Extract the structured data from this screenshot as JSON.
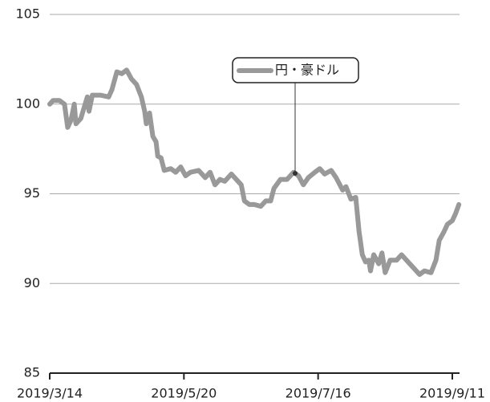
{
  "chart_data": {
    "type": "line",
    "x": [
      0,
      1,
      3,
      4.5,
      5.5,
      6.5,
      7.5,
      8,
      9.5,
      11.5,
      12,
      13,
      15.5,
      18,
      19,
      20.5,
      22,
      23.5,
      25,
      26.5,
      28,
      29,
      29.5,
      30.5,
      31.5,
      32.5,
      33,
      34,
      35,
      37,
      38.5,
      40,
      41.5,
      43,
      45.5,
      47.5,
      49,
      50.5,
      52,
      53.5,
      55.5,
      58.5,
      59.5,
      61,
      62.5,
      64.5,
      66,
      67.5,
      68.5,
      70.5,
      72.5,
      74.5,
      76,
      77.5,
      79,
      81,
      82.5,
      84,
      86,
      87.5,
      89.5,
      90.5,
      92,
      93.5,
      94.5,
      95.5,
      96.5,
      97.5,
      98,
      99,
      100.5,
      101.5,
      102.5,
      104,
      106,
      107.5,
      110,
      111.5,
      113,
      114.5,
      116.5,
      118,
      119,
      120.5,
      121.5,
      123,
      124,
      125
    ],
    "series": [
      {
        "name": "円・豪ドル",
        "color": "#999999",
        "values": [
          100.0,
          100.2,
          100.2,
          100.0,
          98.7,
          99.1,
          100.0,
          98.9,
          99.2,
          100.4,
          99.6,
          100.5,
          100.5,
          100.4,
          100.8,
          101.8,
          101.7,
          101.9,
          101.4,
          101.1,
          100.4,
          99.6,
          98.9,
          99.5,
          98.2,
          97.9,
          97.1,
          97.0,
          96.3,
          96.4,
          96.2,
          96.5,
          96.0,
          96.2,
          96.3,
          95.9,
          96.2,
          95.5,
          95.8,
          95.7,
          96.1,
          95.5,
          94.6,
          94.4,
          94.4,
          94.3,
          94.6,
          94.6,
          95.3,
          95.8,
          95.8,
          96.2,
          96.0,
          95.5,
          95.9,
          96.2,
          96.4,
          96.1,
          96.3,
          95.9,
          95.2,
          95.4,
          94.7,
          94.8,
          92.9,
          91.6,
          91.2,
          91.3,
          90.7,
          91.6,
          91.1,
          91.7,
          90.6,
          91.3,
          91.3,
          91.6,
          91.1,
          90.8,
          90.5,
          90.7,
          90.6,
          91.3,
          92.4,
          92.9,
          93.3,
          93.5,
          93.9,
          94.4
        ]
      }
    ],
    "xlim": [
      0,
      125
    ],
    "xticks": [
      {
        "value": 0,
        "label": "2019/3/14"
      },
      {
        "value": 41,
        "label": "2019/5/20"
      },
      {
        "value": 82,
        "label": "2019/7/16"
      },
      {
        "value": 123,
        "label": "2019/9/11"
      }
    ],
    "ylim": [
      85,
      105
    ],
    "yticks": [
      85,
      90,
      95,
      100,
      105
    ],
    "grid": true
  }
}
